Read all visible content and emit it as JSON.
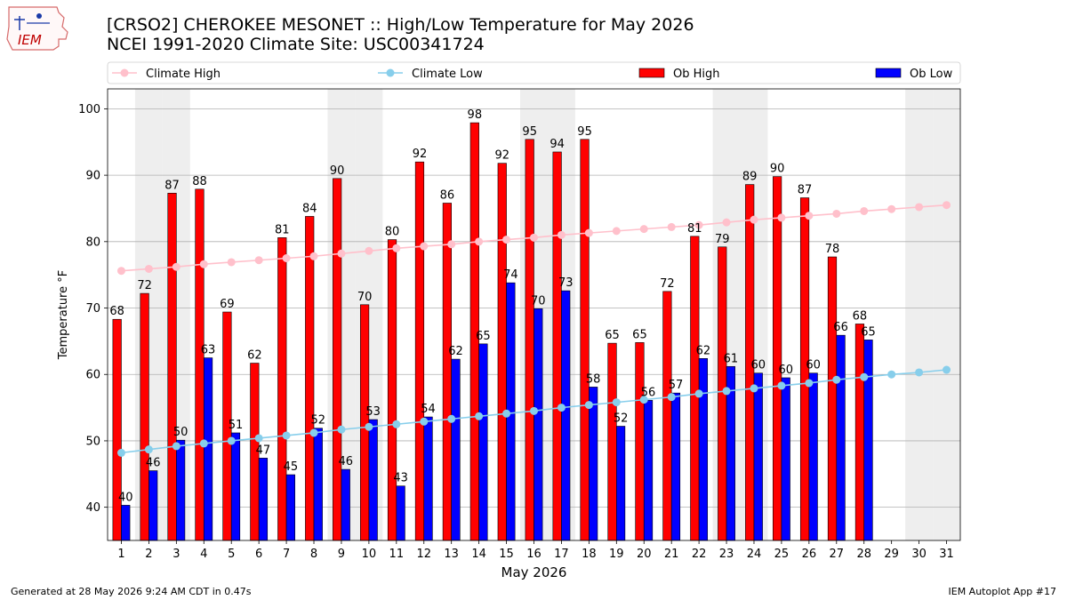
{
  "header": {
    "title_line1": "[CRSO2] CHEROKEE MESONET :: High/Low Temperature for May 2026",
    "title_line2": "NCEI 1991-2020 Climate Site: USC00341724"
  },
  "logo": {
    "text": "IEM"
  },
  "footer": {
    "generated": "Generated at 28 May 2026 9:24 AM CDT in 0.47s",
    "app": "IEM Autoplot App #17"
  },
  "colors": {
    "ob_high": "#ff0000",
    "ob_low": "#0000ff",
    "climate_high": "#ffc0cb",
    "climate_low": "#87ceeb",
    "weekend_shade": "#eeeeee",
    "grid": "#b0b0b0"
  },
  "chart_data": {
    "type": "bar",
    "xlabel": "May 2026",
    "ylabel": "Temperature °F",
    "ylim": [
      35,
      103
    ],
    "yticks": [
      40,
      50,
      60,
      70,
      80,
      90,
      100
    ],
    "grid": "horizontal",
    "legend_position": "top",
    "x": [
      1,
      2,
      3,
      4,
      5,
      6,
      7,
      8,
      9,
      10,
      11,
      12,
      13,
      14,
      15,
      16,
      17,
      18,
      19,
      20,
      21,
      22,
      23,
      24,
      25,
      26,
      27,
      28,
      29,
      30,
      31
    ],
    "shaded_days": [
      2,
      3,
      9,
      10,
      16,
      17,
      23,
      24,
      30,
      31
    ],
    "series": [
      {
        "name": "Climate High",
        "kind": "line",
        "values": [
          75.6,
          75.9,
          76.2,
          76.6,
          76.9,
          77.2,
          77.5,
          77.8,
          78.2,
          78.6,
          79.0,
          79.3,
          79.6,
          80.0,
          80.3,
          80.6,
          81.0,
          81.3,
          81.6,
          81.9,
          82.2,
          82.5,
          82.9,
          83.3,
          83.6,
          83.9,
          84.2,
          84.6,
          84.9,
          85.2,
          85.5
        ]
      },
      {
        "name": "Climate Low",
        "kind": "line",
        "values": [
          48.2,
          48.7,
          49.2,
          49.6,
          50.0,
          50.4,
          50.8,
          51.2,
          51.7,
          52.1,
          52.5,
          52.9,
          53.3,
          53.7,
          54.1,
          54.5,
          55.0,
          55.4,
          55.8,
          56.2,
          56.6,
          57.1,
          57.5,
          57.9,
          58.3,
          58.7,
          59.2,
          59.6,
          60.0,
          60.3,
          60.7
        ]
      },
      {
        "name": "Ob High",
        "kind": "bar",
        "values": [
          68.3,
          72.2,
          87.3,
          87.9,
          69.4,
          61.7,
          80.6,
          83.8,
          89.5,
          70.5,
          80.3,
          92.0,
          85.8,
          97.9,
          91.8,
          95.4,
          93.5,
          95.4,
          64.7,
          64.8,
          72.5,
          80.8,
          79.2,
          88.6,
          89.8,
          86.6,
          77.7,
          67.6,
          null,
          null,
          null
        ],
        "labels": [
          "68",
          "72",
          "87",
          "88",
          "69",
          "62",
          "81",
          "84",
          "90",
          "70",
          "80",
          "92",
          "86",
          "98",
          "92",
          "95",
          "94",
          "95",
          "65",
          "65",
          "72",
          "81",
          "79",
          "89",
          "90",
          "87",
          "78",
          "68",
          "",
          "",
          ""
        ]
      },
      {
        "name": "Ob Low",
        "kind": "bar",
        "values": [
          40.3,
          45.5,
          50.1,
          62.5,
          51.2,
          47.4,
          44.9,
          51.9,
          45.7,
          53.2,
          43.2,
          53.6,
          62.3,
          64.6,
          73.8,
          69.9,
          72.6,
          58.1,
          52.2,
          56.1,
          57.2,
          62.4,
          61.2,
          60.2,
          59.5,
          60.2,
          65.9,
          65.2,
          null,
          null,
          null
        ],
        "labels": [
          "40",
          "46",
          "50",
          "63",
          "51",
          "47",
          "45",
          "52",
          "46",
          "53",
          "43",
          "54",
          "62",
          "65",
          "74",
          "70",
          "73",
          "58",
          "52",
          "56",
          "57",
          "62",
          "61",
          "60",
          "60",
          "60",
          "66",
          "65",
          "",
          "",
          ""
        ]
      }
    ]
  }
}
